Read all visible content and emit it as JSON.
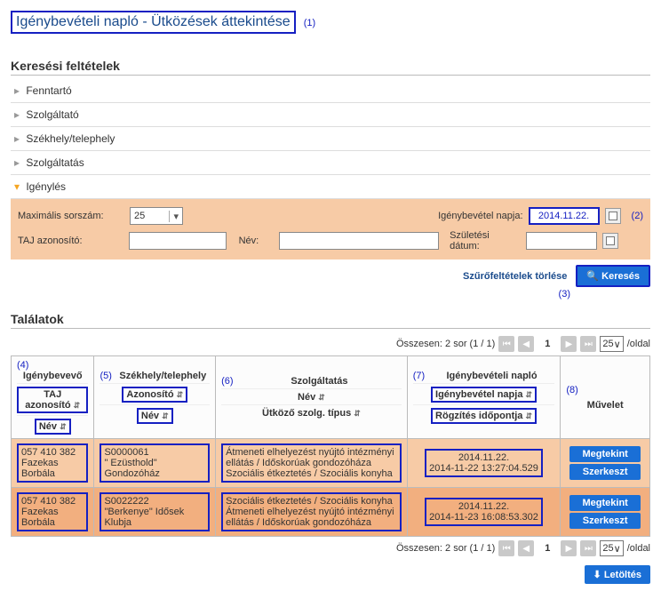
{
  "title": "Igénybevételi napló - Ütközések áttekintése",
  "title_annotation": "(1)",
  "search_section_title": "Keresési feltételek",
  "collapsers": [
    {
      "label": "Fenntartó",
      "open": false
    },
    {
      "label": "Szolgáltató",
      "open": false
    },
    {
      "label": "Székhely/telephely",
      "open": false
    },
    {
      "label": "Szolgáltatás",
      "open": false
    },
    {
      "label": "Igénylés",
      "open": true
    }
  ],
  "igeny": {
    "max_sorszam_label": "Maximális sorszám:",
    "max_sorszam_value": "25",
    "nap_label": "Igénybevétel napja:",
    "nap_value": "2014.11.22.",
    "nap_annotation": "(2)",
    "taj_label": "TAJ azonosító:",
    "nev_label": "Név:",
    "szul_label": "Születési dátum:"
  },
  "filter_clear": "Szűrőfeltételek törlése",
  "filter_annotation": "(3)",
  "search_btn": "Keresés",
  "results_title": "Találatok",
  "pager": {
    "summary": "Összesen: 2 sor (1 / 1)",
    "page": "1",
    "per_page": "25",
    "per_page_suffix": "/oldal"
  },
  "columns": {
    "c1": {
      "anno": "(4)",
      "title": "Igénybevevő",
      "sub1": "TAJ azonosító ",
      "sub2": "Név "
    },
    "c2": {
      "anno": "(5)",
      "title": "Székhely/telephely",
      "sub1": "Azonosító ",
      "sub2": "Név "
    },
    "c3": {
      "anno": "(6)",
      "title": "Szolgáltatás",
      "sub1": "Név ",
      "sub2": "Ütköző szolg. típus "
    },
    "c4": {
      "anno": "(7)",
      "title": "Igénybevételi napló",
      "sub1": "Igénybevétel napja ",
      "sub2": "Rögzítés időpontja "
    },
    "c5": {
      "anno": "(8)",
      "title": "Művelet"
    }
  },
  "rows": [
    {
      "taj": "057 410 382",
      "nev": "Fazekas Borbála",
      "telep_id": "S0000061",
      "telep_nev": "\" Ezüsthold\" Gondozóház",
      "szolg1": "Átmeneti elhelyezést nyújtó intézményi ellátás / Időskorúak gondozóháza",
      "szolg2": "Szociális étkeztetés / Szociális konyha",
      "nap": "2014.11.22.",
      "rogz": "2014-11-22 13:27:04.529"
    },
    {
      "taj": "057 410 382",
      "nev": "Fazekas Borbála",
      "telep_id": "S0022222",
      "telep_nev": "\"Berkenye\" Idősek Klubja",
      "szolg1": "Szociális étkeztetés / Szociális konyha",
      "szolg2": "Átmeneti elhelyezést nyújtó intézményi ellátás / Időskorúak gondozóháza",
      "nap": "2014.11.22.",
      "rogz": "2014-11-23 16:08:53.302"
    }
  ],
  "op_view": "Megtekint",
  "op_edit": "Szerkeszt",
  "download": "Letöltés",
  "sort_glyph": "⇵"
}
